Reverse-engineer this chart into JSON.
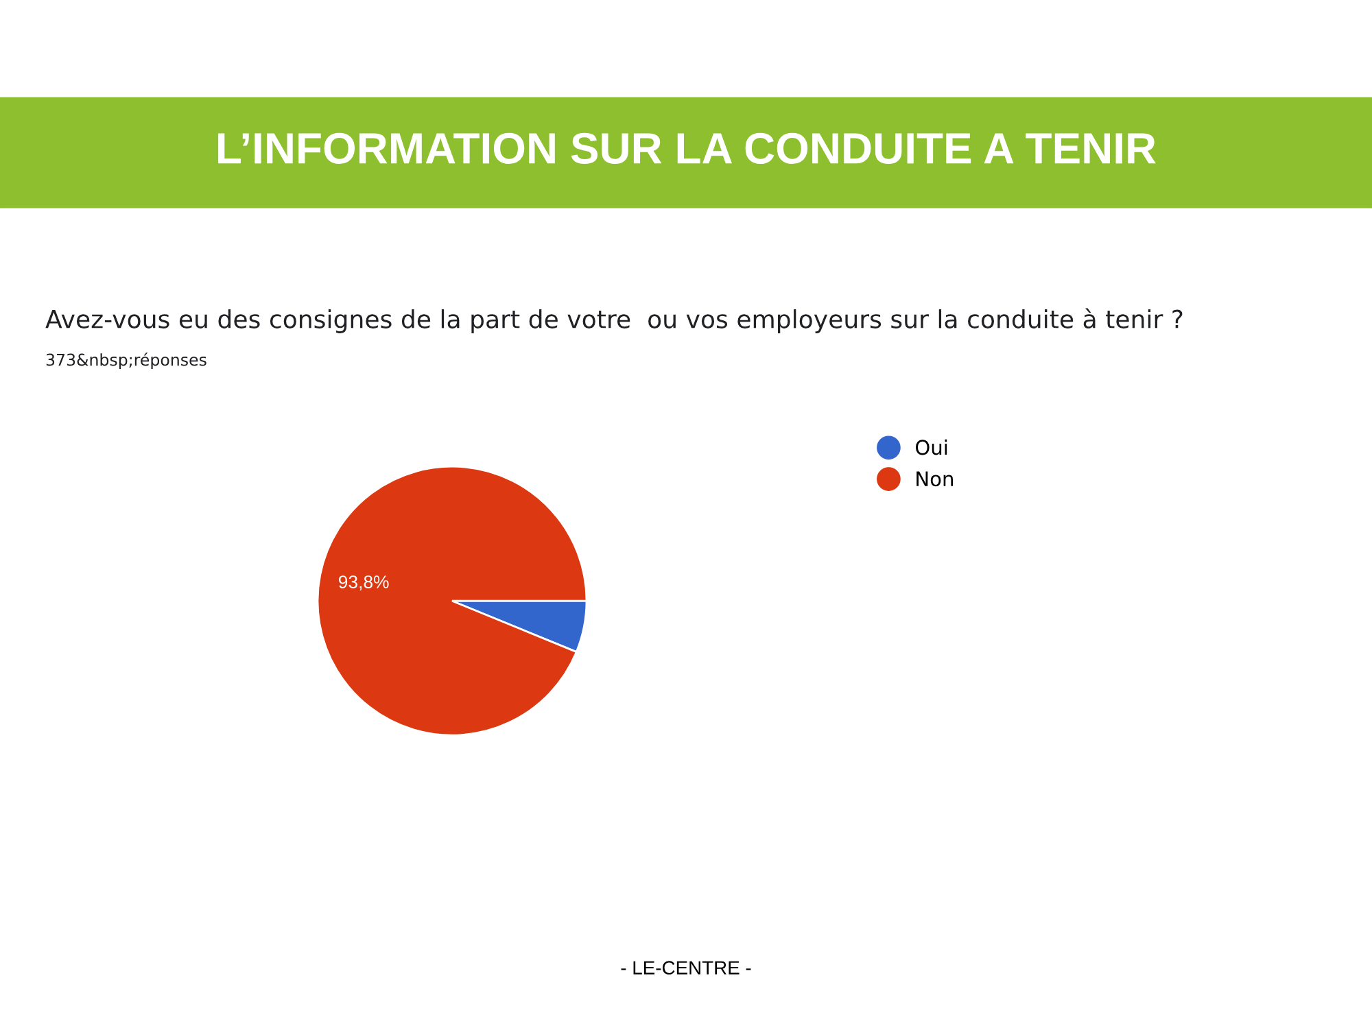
{
  "chart_data": {
    "type": "pie",
    "title": "L’INFORMATION SUR LA CONDUITE A TENIR",
    "subtitle": "Avez-vous eu des consignes de la part de votre  ou vos employeurs sur la conduite à tenir ?",
    "annotations": [
      "373&nbsp;réponses",
      "- LE-CENTRE -"
    ],
    "categories": [
      "Oui",
      "Non"
    ],
    "values": [
      6.2,
      93.8
    ],
    "colors": [
      "#3366cc",
      "#dc3912"
    ],
    "value_labels": [
      null,
      "93,8%"
    ],
    "legend": "top right"
  }
}
